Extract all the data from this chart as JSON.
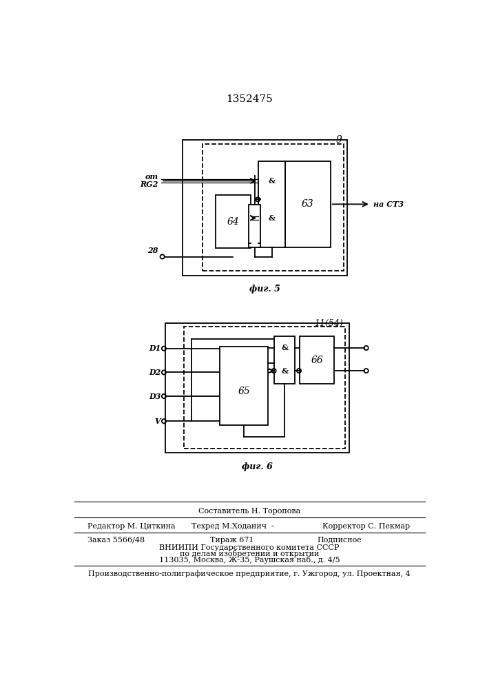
{
  "title": "1352475",
  "bg": "#ffffff",
  "fig5_label": "9",
  "fig5_caption": "фиг. 5",
  "fig6_label": "11(54)",
  "fig6_caption": "фиг. 6",
  "footer1": "Составитель Н. Торопова",
  "footer2a": "Редактор М. Циткина",
  "footer2b": "Техред М.Ходанич  -",
  "footer2c": "Корректор С. Пекмар",
  "footer3a": "Заказ 5566/48",
  "footer3b": "Тираж 671",
  "footer3c": "Подписное",
  "footer4": "ВНИИПИ Государственного комитета СССР",
  "footer5": "по делам изобретений и открытий",
  "footer6": "113035, Москва, Ж-35, Раушская наб., д. 4/5",
  "footer7": "Производственно-полиграфическое предприятие, г. Ужгород, ул. Проектная, 4"
}
